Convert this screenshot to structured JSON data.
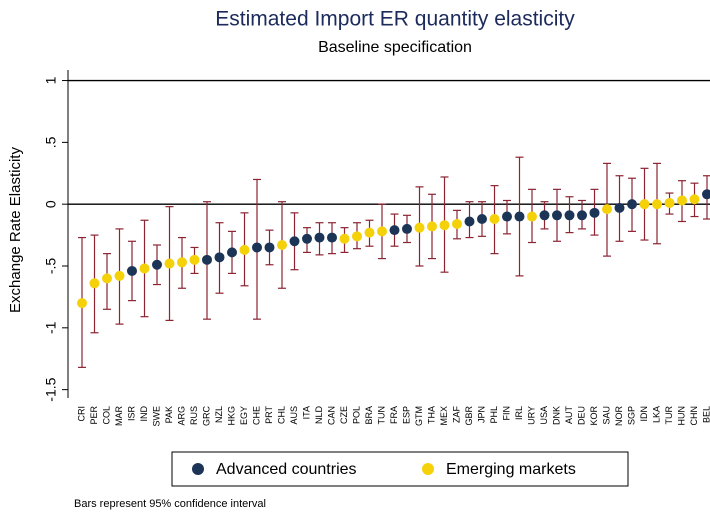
{
  "chart_data": {
    "type": "dot-errorbar",
    "title": "Estimated Import ER quantity elasticity",
    "subtitle": "Baseline specification",
    "y_label": "Exchange Rate Elasticity",
    "note": "Bars represent 95% confidence interval",
    "categories": [
      "CRI",
      "PER",
      "COL",
      "MAR",
      "ISR",
      "IND",
      "SWE",
      "PAK",
      "ARG",
      "RUS",
      "GRC",
      "NZL",
      "HKG",
      "EGY",
      "CHE",
      "PRT",
      "CHL",
      "AUS",
      "ITA",
      "NLD",
      "CAN",
      "CZE",
      "POL",
      "BRA",
      "TUN",
      "FRA",
      "ESP",
      "GTM",
      "THA",
      "MEX",
      "ZAF",
      "GBR",
      "JPN",
      "PHL",
      "FIN",
      "IRL",
      "URY",
      "USA",
      "DNK",
      "AUT",
      "DEU",
      "KOR",
      "SAU",
      "NOR",
      "SGP",
      "IDN",
      "LKA",
      "TUR",
      "HUN",
      "CHN",
      "BEL"
    ],
    "series": [
      {
        "name": "Advanced countries",
        "color": "#1c3557",
        "values": [
          null,
          null,
          null,
          null,
          -0.54,
          null,
          -0.49,
          null,
          null,
          null,
          -0.45,
          -0.43,
          -0.39,
          null,
          -0.35,
          -0.35,
          null,
          -0.3,
          -0.28,
          -0.27,
          -0.27,
          null,
          null,
          null,
          null,
          -0.21,
          -0.2,
          null,
          null,
          null,
          null,
          -0.14,
          -0.12,
          null,
          -0.1,
          -0.1,
          null,
          -0.09,
          -0.09,
          -0.09,
          -0.09,
          -0.07,
          null,
          -0.03,
          0.0,
          null,
          null,
          null,
          null,
          null,
          0.08
        ]
      },
      {
        "name": "Emerging markets",
        "color": "#f5d10a",
        "values": [
          -0.8,
          -0.64,
          -0.6,
          -0.58,
          null,
          -0.52,
          null,
          -0.48,
          -0.47,
          -0.45,
          null,
          null,
          null,
          -0.37,
          null,
          null,
          -0.33,
          null,
          null,
          null,
          null,
          -0.28,
          -0.26,
          -0.23,
          -0.22,
          null,
          null,
          -0.19,
          -0.18,
          -0.17,
          -0.16,
          null,
          null,
          -0.12,
          null,
          null,
          -0.1,
          null,
          null,
          null,
          null,
          null,
          -0.04,
          null,
          null,
          0.0,
          0.0,
          0.01,
          0.03,
          0.04,
          null
        ]
      }
    ],
    "lower": [
      -1.32,
      -1.04,
      -0.85,
      -0.97,
      -0.78,
      -0.91,
      -0.65,
      -0.94,
      -0.68,
      -0.56,
      -0.93,
      -0.72,
      -0.56,
      -0.66,
      -0.93,
      -0.49,
      -0.68,
      -0.53,
      -0.39,
      -0.41,
      -0.4,
      -0.39,
      -0.36,
      -0.34,
      -0.44,
      -0.34,
      -0.31,
      -0.5,
      -0.44,
      -0.55,
      -0.28,
      -0.27,
      -0.26,
      -0.4,
      -0.24,
      -0.58,
      -0.31,
      -0.2,
      -0.3,
      -0.23,
      -0.2,
      -0.25,
      -0.42,
      -0.3,
      -0.22,
      -0.29,
      -0.32,
      -0.08,
      -0.14,
      -0.1,
      -0.12
    ],
    "upper": [
      -0.27,
      -0.25,
      -0.4,
      -0.2,
      -0.3,
      -0.13,
      -0.33,
      -0.02,
      -0.27,
      -0.35,
      0.02,
      -0.15,
      -0.22,
      -0.07,
      0.2,
      -0.21,
      0.02,
      -0.07,
      -0.19,
      -0.15,
      -0.15,
      -0.19,
      -0.15,
      -0.13,
      0.0,
      -0.08,
      -0.09,
      0.14,
      0.08,
      0.22,
      -0.05,
      0.02,
      0.02,
      0.15,
      0.03,
      0.38,
      0.12,
      0.02,
      0.12,
      0.06,
      0.03,
      0.12,
      0.33,
      0.23,
      0.21,
      0.29,
      0.33,
      0.09,
      0.19,
      0.17,
      0.23
    ],
    "error_color": "#8c2432",
    "hlines": [
      1,
      0
    ],
    "ylim": [
      -1.6,
      1.15
    ],
    "yticks": [
      {
        "value": -1.5,
        "label": "-1.5"
      },
      -1,
      {
        "value": -0.5,
        "label": "-.5"
      },
      0,
      {
        "value": 0.5,
        "label": ".5"
      },
      1
    ]
  }
}
